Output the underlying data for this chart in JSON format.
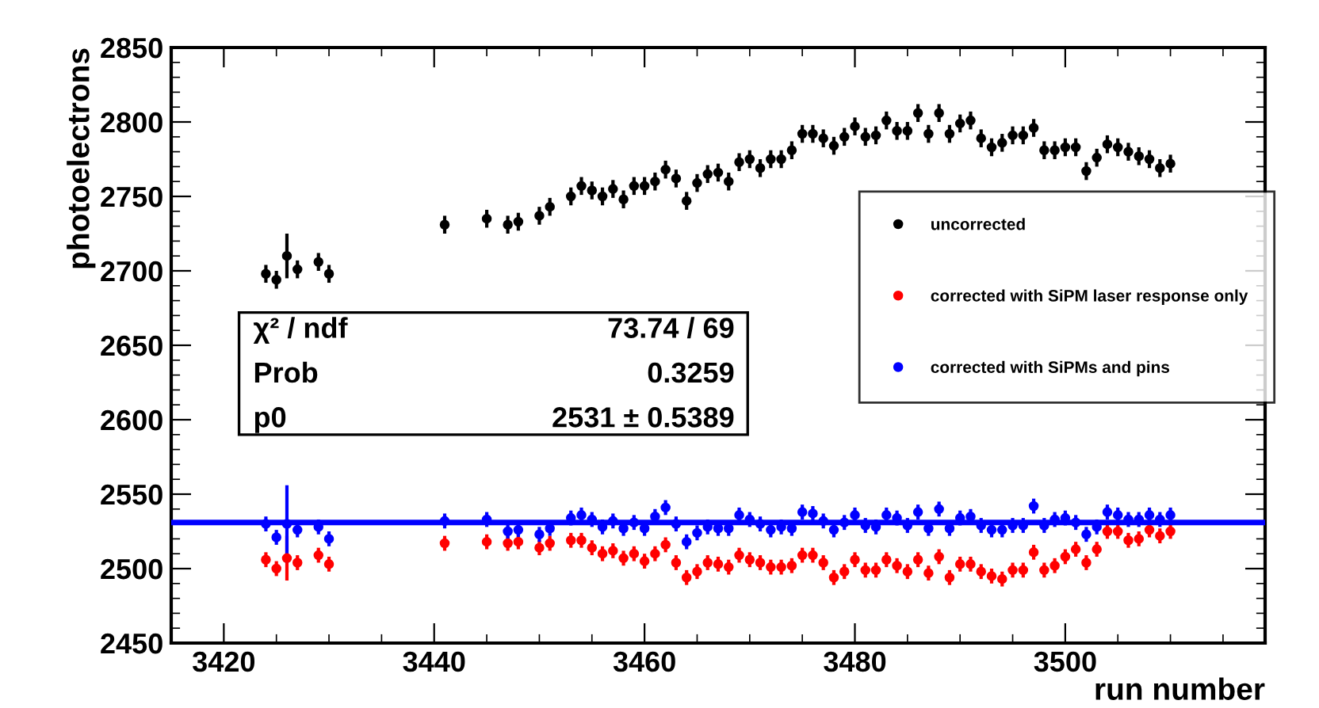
{
  "chart_data": {
    "type": "scatter",
    "xlabel": "run number",
    "ylabel": "photoelectrons",
    "x": [
      3424,
      3425,
      3426,
      3427,
      3429,
      3430,
      3441,
      3445,
      3447,
      3448,
      3450,
      3451,
      3453,
      3454,
      3455,
      3456,
      3457,
      3458,
      3459,
      3460,
      3461,
      3462,
      3463,
      3464,
      3465,
      3466,
      3467,
      3468,
      3469,
      3470,
      3471,
      3472,
      3473,
      3474,
      3475,
      3476,
      3477,
      3478,
      3479,
      3480,
      3481,
      3482,
      3483,
      3484,
      3485,
      3486,
      3487,
      3488,
      3489,
      3490,
      3491,
      3492,
      3493,
      3494,
      3495,
      3496,
      3497,
      3498,
      3499,
      3500,
      3501,
      3502,
      3503,
      3504,
      3505,
      3506,
      3507,
      3508,
      3509,
      3510
    ],
    "series": [
      {
        "name": "uncorrected",
        "color": "#000000",
        "values": [
          2698,
          2694,
          2710,
          2701,
          2706,
          2698,
          2731,
          2735,
          2731,
          2733,
          2737,
          2743,
          2750,
          2757,
          2754,
          2750,
          2755,
          2748,
          2757,
          2757,
          2760,
          2768,
          2762,
          2747,
          2759,
          2765,
          2766,
          2760,
          2773,
          2775,
          2769,
          2775,
          2775,
          2781,
          2792,
          2792,
          2789,
          2784,
          2790,
          2797,
          2790,
          2791,
          2801,
          2794,
          2794,
          2806,
          2792,
          2806,
          2792,
          2799,
          2801,
          2789,
          2783,
          2786,
          2791,
          2791,
          2796,
          2781,
          2781,
          2783,
          2783,
          2767,
          2776,
          2785,
          2783,
          2780,
          2777,
          2775,
          2769,
          2772
        ],
        "errors": [
          6,
          6,
          15,
          6,
          6,
          6,
          6,
          6,
          6,
          6,
          6,
          6,
          6,
          6,
          6,
          6,
          6,
          6,
          6,
          6,
          6,
          6,
          6,
          6,
          6,
          6,
          6,
          6,
          6,
          6,
          6,
          6,
          6,
          6,
          6,
          6,
          6,
          6,
          6,
          6,
          6,
          6,
          6,
          6,
          6,
          6,
          6,
          6,
          6,
          6,
          6,
          6,
          6,
          6,
          6,
          6,
          6,
          6,
          6,
          6,
          6,
          6,
          6,
          6,
          6,
          6,
          6,
          6,
          6,
          6
        ]
      },
      {
        "name": "corrected with SiPM laser response only",
        "color": "#ff0000",
        "values": [
          2506,
          2500,
          2507,
          2504,
          2509,
          2503,
          2517,
          2518,
          2517,
          2518,
          2514,
          2517,
          2519,
          2519,
          2514,
          2510,
          2512,
          2507,
          2510,
          2505,
          2510,
          2516,
          2504,
          2494,
          2498,
          2504,
          2503,
          2501,
          2509,
          2506,
          2504,
          2501,
          2501,
          2502,
          2509,
          2509,
          2504,
          2494,
          2498,
          2506,
          2499,
          2499,
          2506,
          2502,
          2498,
          2506,
          2497,
          2508,
          2494,
          2503,
          2503,
          2498,
          2495,
          2493,
          2499,
          2499,
          2511,
          2499,
          2502,
          2508,
          2513,
          2504,
          2513,
          2525,
          2525,
          2519,
          2520,
          2526,
          2522,
          2525
        ],
        "errors": [
          5,
          5,
          15,
          5,
          5,
          5,
          5,
          5,
          5,
          5,
          5,
          5,
          5,
          5,
          5,
          5,
          5,
          5,
          5,
          5,
          5,
          5,
          5,
          5,
          5,
          5,
          5,
          5,
          5,
          5,
          5,
          5,
          5,
          5,
          5,
          5,
          5,
          5,
          5,
          5,
          5,
          5,
          5,
          5,
          5,
          5,
          5,
          5,
          5,
          5,
          5,
          5,
          5,
          5,
          5,
          5,
          5,
          5,
          5,
          5,
          5,
          5,
          5,
          5,
          5,
          5,
          5,
          5,
          5,
          5
        ]
      },
      {
        "name": "corrected with SiPMs and pins",
        "color": "#0000ff",
        "values": [
          2530,
          2521,
          2530,
          2526,
          2528,
          2520,
          2532,
          2533,
          2525,
          2526,
          2523,
          2527,
          2534,
          2536,
          2533,
          2528,
          2532,
          2527,
          2531,
          2527,
          2535,
          2541,
          2530,
          2518,
          2524,
          2528,
          2527,
          2527,
          2536,
          2533,
          2530,
          2526,
          2528,
          2527,
          2538,
          2537,
          2532,
          2526,
          2531,
          2536,
          2529,
          2528,
          2536,
          2534,
          2529,
          2538,
          2527,
          2540,
          2527,
          2534,
          2535,
          2529,
          2526,
          2526,
          2529,
          2529,
          2542,
          2529,
          2533,
          2534,
          2531,
          2523,
          2528,
          2538,
          2536,
          2533,
          2533,
          2536,
          2533,
          2536
        ],
        "errors": [
          5,
          5,
          26,
          5,
          5,
          5,
          5,
          5,
          5,
          5,
          5,
          5,
          5,
          5,
          5,
          5,
          5,
          5,
          5,
          5,
          5,
          5,
          5,
          5,
          5,
          5,
          5,
          5,
          5,
          5,
          5,
          5,
          5,
          5,
          5,
          5,
          5,
          5,
          5,
          5,
          5,
          5,
          5,
          5,
          5,
          5,
          5,
          5,
          5,
          5,
          5,
          5,
          5,
          5,
          5,
          5,
          5,
          5,
          5,
          5,
          5,
          5,
          5,
          5,
          5,
          5,
          5,
          5,
          5,
          5
        ]
      }
    ],
    "ref_lines": [
      {
        "axis": "y",
        "value": 2531,
        "color": "#0000ff"
      }
    ],
    "annotations": [
      "χ² / ndf",
      "73.74 / 69",
      "Prob",
      "0.3259",
      "p0",
      "2531 ± 0.5389"
    ],
    "xlim": [
      3415,
      3519
    ],
    "ylim": [
      2450,
      2850
    ],
    "xticks": [
      3420,
      3440,
      3460,
      3480,
      3500
    ],
    "yticks": [
      2450,
      2500,
      2550,
      2600,
      2650,
      2700,
      2750,
      2800,
      2850
    ],
    "marker": "circle",
    "legend": "right",
    "grid": false
  }
}
